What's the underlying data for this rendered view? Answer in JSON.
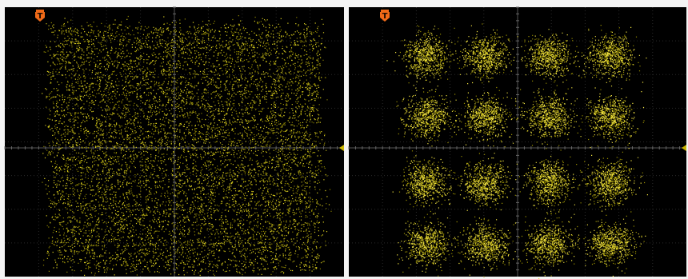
{
  "panels": [
    {
      "trigger_label": "T"
    },
    {
      "trigger_label": "T"
    }
  ]
}
